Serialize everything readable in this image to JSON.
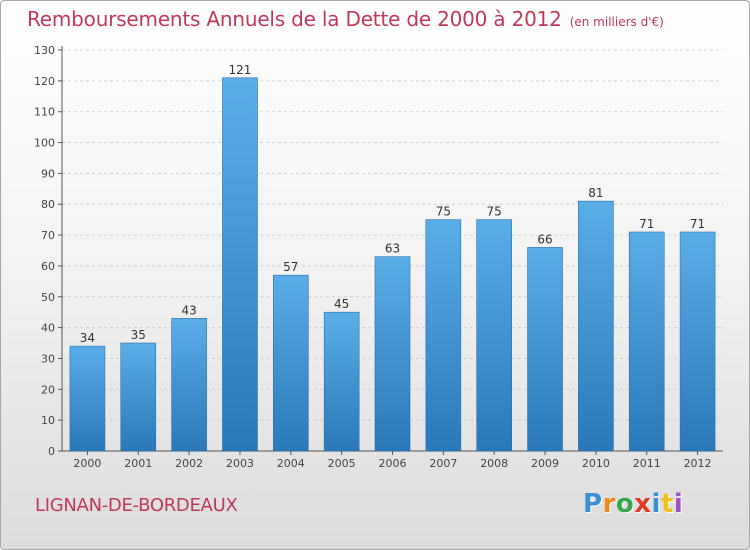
{
  "title": "Remboursements Annuels de la Dette de 2000 à 2012",
  "subtitle": "(en milliers d'€)",
  "commune": "LIGNAN-DE-BORDEAUX",
  "logo": {
    "letters": [
      "P",
      "r",
      "o",
      "x",
      "i",
      "t",
      "i"
    ],
    "colors": [
      "#3a8fd8",
      "#f08a1a",
      "#3aa84a",
      "#e03a2a",
      "#3a8fd8",
      "#f0c020",
      "#a050c0"
    ]
  },
  "chart_data": {
    "type": "bar",
    "categories": [
      "2000",
      "2001",
      "2002",
      "2003",
      "2004",
      "2005",
      "2006",
      "2007",
      "2008",
      "2009",
      "2010",
      "2011",
      "2012"
    ],
    "values": [
      34,
      35,
      43,
      121,
      57,
      45,
      63,
      75,
      75,
      66,
      81,
      71,
      71
    ],
    "ylim": [
      0,
      130
    ],
    "yticks": [
      0,
      10,
      20,
      30,
      40,
      50,
      60,
      70,
      80,
      90,
      100,
      110,
      120,
      130
    ],
    "grid": "horizontal dashed",
    "bar_color_top": "#5aaee8",
    "bar_color_bottom": "#2a78b8"
  }
}
